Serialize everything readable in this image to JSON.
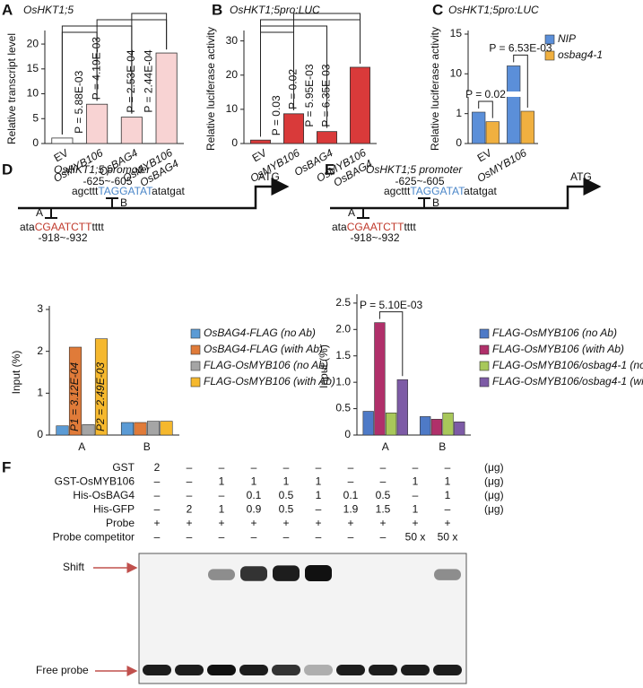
{
  "chart_data": [
    {
      "type": "bar",
      "label": "A",
      "title": "OsHKT1;5",
      "y_label": "Relative transcript level",
      "categories": [
        "EV",
        "OsMYB106",
        "OsBAG4",
        "OsMYB106\nOsBAG4"
      ],
      "values": [
        1.1,
        7.9,
        5.3,
        18.2
      ],
      "colors": [
        "#ffffff",
        "#f8d3d3",
        "#f8d3d3",
        "#f8d3d3"
      ],
      "ylim": [
        0,
        22
      ],
      "yticks": [
        0,
        5,
        10,
        15,
        20
      ],
      "comparisons": [
        {
          "text": "P = 5.88E-03",
          "between": [
            "EV",
            "OsMYB106"
          ]
        },
        {
          "text": "P = 4.19E-03",
          "between": [
            "EV",
            "OsBAG4"
          ]
        },
        {
          "text": "P = 2.53E-04",
          "between": [
            "OsMYB106",
            "OsMYB106\nOsBAG4"
          ]
        },
        {
          "text": "P = 2.44E-04",
          "between": [
            "OsBAG4",
            "OsMYB106\nOsBAG4"
          ]
        }
      ]
    },
    {
      "type": "bar",
      "label": "B",
      "title": "OsHKT1;5pro:LUC",
      "y_label": "Relative luciferase activity",
      "categories": [
        "EV",
        "OsMYB106",
        "OsBAG4",
        "OsMYB106\nOsBAG4"
      ],
      "values": [
        1.0,
        8.7,
        3.5,
        22.3
      ],
      "color": "#d93a3a",
      "ylim": [
        0,
        32
      ],
      "yticks": [
        0,
        10,
        20,
        30
      ],
      "comparisons": [
        {
          "text": "P = 0.03",
          "between": [
            "EV",
            "OsMYB106"
          ]
        },
        {
          "text": "P = 0.02",
          "between": [
            "EV",
            "OsBAG4"
          ]
        },
        {
          "text": "P = 5.95E-03",
          "between": [
            "EV",
            "OsMYB106\nOsBAG4"
          ]
        },
        {
          "text": "P = 6.35E-03",
          "between": [
            "OsMYB106",
            "OsMYB106\nOsBAG4"
          ]
        }
      ]
    },
    {
      "type": "bar",
      "label": "C",
      "title": "OsHKT1;5pro:LUC",
      "y_label": "Relative luciferase activity",
      "categories": [
        "EV",
        "OsMYB106"
      ],
      "series": [
        {
          "name": "NIP",
          "color": "#5b8fd9",
          "values": [
            1.05,
            11.0
          ]
        },
        {
          "name": "osbag4-1",
          "color": "#f0b040",
          "values": [
            0.73,
            1.08
          ]
        }
      ],
      "ylim": [
        0,
        15
      ],
      "axis_break": [
        1.5,
        8
      ],
      "yticks": [
        0,
        1,
        10,
        15
      ],
      "comparisons": [
        {
          "text": "P = 0.02",
          "category": "EV"
        },
        {
          "text": "P = 6.53E-03",
          "category": "OsMYB106"
        }
      ]
    },
    {
      "type": "bar",
      "label": "D",
      "y_label": "Input (%)",
      "categories": [
        "A",
        "B"
      ],
      "series": [
        {
          "name": "OsBAG4-FLAG (no Ab)",
          "color": "#5b9bd5",
          "values": [
            0.22,
            0.3
          ]
        },
        {
          "name": "OsBAG4-FLAG (with Ab)",
          "color": "#e07b39",
          "values": [
            2.1,
            0.3
          ]
        },
        {
          "name": "FLAG-OsMYB106 (no Ab)",
          "color": "#a5a5a5",
          "values": [
            0.25,
            0.33
          ]
        },
        {
          "name": "FLAG-OsMYB106 (with Ab)",
          "color": "#f5b82e",
          "values": [
            2.3,
            0.33
          ]
        }
      ],
      "ylim": [
        0,
        3
      ],
      "yticks": [
        0,
        1,
        2,
        3
      ],
      "annotations": [
        {
          "text": "P1 = 3.12E-04",
          "series": "OsBAG4-FLAG (with Ab)",
          "category": "A"
        },
        {
          "text": "P2 = 2.49E-03",
          "series": "FLAG-OsMYB106 (with Ab)",
          "category": "A"
        }
      ]
    },
    {
      "type": "bar",
      "label": "E",
      "y_label": "Input (%)",
      "categories": [
        "A",
        "B"
      ],
      "series": [
        {
          "name": "FLAG-OsMYB106 (no Ab)",
          "color": "#4e7ac7",
          "values": [
            0.45,
            0.35
          ]
        },
        {
          "name": "FLAG-OsMYB106 (with Ab)",
          "color": "#b0306a",
          "values": [
            2.13,
            0.3
          ]
        },
        {
          "name": "FLAG-OsMYB106/osbag4-1 (no Ab)",
          "color": "#a8c85a",
          "values": [
            0.42,
            0.42
          ]
        },
        {
          "name": "FLAG-OsMYB106/osbag4-1 (with Ab)",
          "color": "#7d5ba6",
          "values": [
            1.05,
            0.25
          ]
        }
      ],
      "ylim": [
        0,
        2.6
      ],
      "yticks": [
        0,
        0.5,
        {
          "value": 1,
          "label": "1.0"
        },
        1.5,
        {
          "value": 2,
          "label": "2.0"
        },
        2.5
      ],
      "comparisons": [
        {
          "text": "P = 5.10E-03",
          "category": "A",
          "between": [
            "FLAG-OsMYB106 (with Ab)",
            "FLAG-OsMYB106/osbag4-1 (with Ab)"
          ]
        }
      ]
    }
  ],
  "promoter_diagram": {
    "title": "OsHKT1;5 promoter",
    "site_b_position": "-625~-605",
    "site_b_seq": [
      "agcttt",
      "TAGGATAT",
      "atatgat"
    ],
    "site_b_label": "B",
    "site_a_label": "A",
    "site_a_seq": [
      "ata",
      "CGAATCTT",
      "tttt"
    ],
    "site_a_position": "-918~-932",
    "start": "ATG"
  },
  "emsa": {
    "label": "F",
    "rows": [
      {
        "name": "GST",
        "cells": [
          "2",
          "–",
          "–",
          "–",
          "–",
          "–",
          "–",
          "–",
          "–",
          "–"
        ],
        "unit": "(μg)"
      },
      {
        "name": "GST-OsMYB106",
        "cells": [
          "–",
          "–",
          "1",
          "1",
          "1",
          "1",
          "–",
          "–",
          "1",
          "1"
        ],
        "unit": "(μg)"
      },
      {
        "name": "His-OsBAG4",
        "cells": [
          "–",
          "–",
          "–",
          "0.1",
          "0.5",
          "1",
          "0.1",
          "0.5",
          "–",
          "1"
        ],
        "unit": "(μg)"
      },
      {
        "name": "His-GFP",
        "cells": [
          "–",
          "2",
          "1",
          "0.9",
          "0.5",
          "–",
          "1.9",
          "1.5",
          "1",
          "–"
        ],
        "unit": "(μg)"
      },
      {
        "name": "Probe",
        "cells": [
          "+",
          "+",
          "+",
          "+",
          "+",
          "+",
          "+",
          "+",
          "+",
          "+"
        ]
      },
      {
        "name": "Probe competitor",
        "cells": [
          "–",
          "–",
          "–",
          "–",
          "–",
          "–",
          "–",
          "–",
          "50 x",
          "50 x"
        ]
      }
    ],
    "shift_label": "Shift",
    "free_probe_label": "Free probe"
  }
}
